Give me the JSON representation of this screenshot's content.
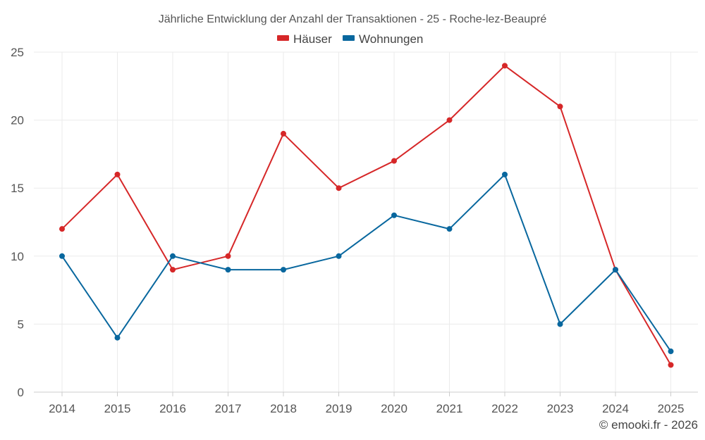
{
  "chart_data": {
    "type": "line",
    "title": "Jährliche Entwicklung der Anzahl der Transaktionen - 25 - Roche-lez-Beaupré",
    "categories": [
      "2014",
      "2015",
      "2016",
      "2017",
      "2018",
      "2019",
      "2020",
      "2021",
      "2022",
      "2023",
      "2024",
      "2025"
    ],
    "series": [
      {
        "name": "Häuser",
        "color": "#d62728",
        "values": [
          12,
          16,
          9,
          10,
          19,
          15,
          17,
          20,
          24,
          21,
          9,
          2
        ]
      },
      {
        "name": "Wohnungen",
        "color": "#08679e",
        "values": [
          10,
          4,
          10,
          9,
          9,
          10,
          13,
          12,
          16,
          5,
          9,
          3
        ]
      }
    ],
    "ylim": [
      0,
      25
    ],
    "yticks": [
      0,
      5,
      10,
      15,
      20,
      25
    ],
    "xlabel": "",
    "ylabel": "",
    "grid": true,
    "legend_position": "top-center"
  },
  "credit": "© emooki.fr - 2026"
}
